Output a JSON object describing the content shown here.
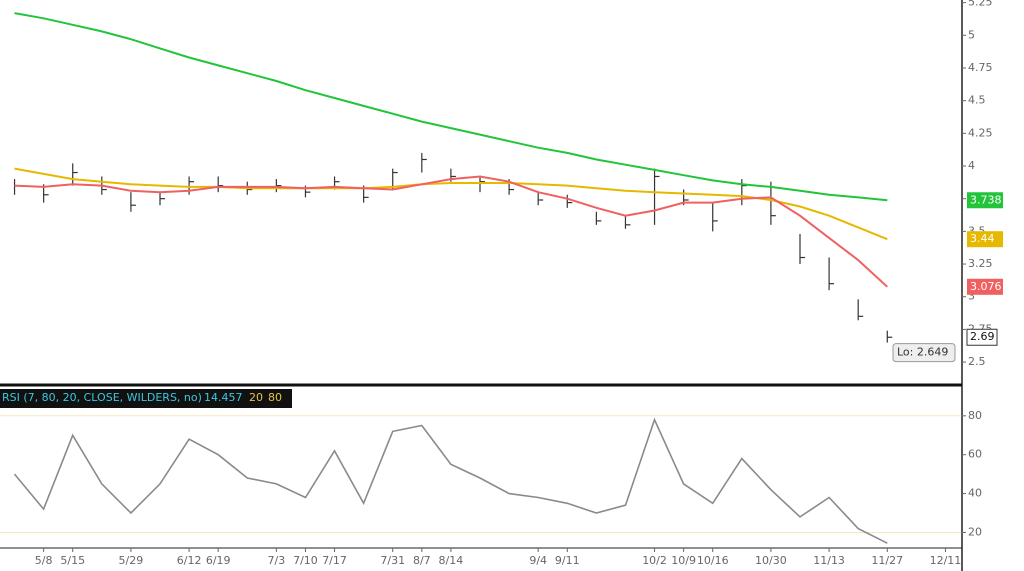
{
  "chart_data": [
    {
      "type": "ohlc",
      "categories": [
        null,
        "5/8",
        "5/15",
        null,
        "5/29",
        null,
        "6/12",
        "6/19",
        null,
        "7/3",
        "7/10",
        "7/17",
        null,
        "7/31",
        "8/7",
        "8/14",
        null,
        null,
        "9/4",
        "9/11",
        null,
        null,
        "10/2",
        "10/9",
        "10/16",
        null,
        "10/30",
        null,
        "11/13",
        null,
        "11/27",
        null,
        "12/11"
      ],
      "high": [
        3.9,
        3.86,
        4.02,
        3.92,
        3.8,
        3.8,
        3.92,
        3.92,
        3.88,
        3.9,
        3.85,
        3.92,
        3.85,
        3.98,
        4.1,
        3.98,
        3.92,
        3.9,
        3.8,
        3.78,
        3.65,
        3.62,
        3.98,
        3.82,
        3.72,
        3.9,
        3.88,
        3.48,
        3.3,
        2.98,
        2.74,
        null,
        null
      ],
      "low": [
        3.78,
        3.72,
        3.85,
        3.78,
        3.65,
        3.7,
        3.78,
        3.8,
        3.78,
        3.8,
        3.76,
        3.82,
        3.72,
        3.82,
        3.95,
        3.88,
        3.8,
        3.78,
        3.7,
        3.68,
        3.55,
        3.52,
        3.55,
        3.7,
        3.5,
        3.7,
        3.55,
        3.25,
        3.05,
        2.82,
        2.649,
        null,
        null
      ],
      "close": [
        3.85,
        3.78,
        3.95,
        3.82,
        3.7,
        3.75,
        3.88,
        3.85,
        3.82,
        3.85,
        3.8,
        3.88,
        3.76,
        3.95,
        4.05,
        3.92,
        3.88,
        3.82,
        3.74,
        3.72,
        3.58,
        3.55,
        3.92,
        3.74,
        3.58,
        3.85,
        3.62,
        3.3,
        3.1,
        2.85,
        2.69,
        null,
        null
      ],
      "price_color": "#333333",
      "series": [
        {
          "color": "#22c43a",
          "values": [
            5.17,
            5.13,
            5.08,
            5.03,
            4.97,
            4.9,
            4.83,
            4.77,
            4.71,
            4.65,
            4.58,
            4.52,
            4.46,
            4.4,
            4.34,
            4.29,
            4.24,
            4.19,
            4.14,
            4.1,
            4.05,
            4.01,
            3.97,
            3.93,
            3.89,
            3.86,
            3.84,
            3.81,
            3.78,
            3.76,
            3.738,
            null,
            null
          ]
        },
        {
          "color": "#e6b800",
          "values": [
            3.98,
            3.94,
            3.9,
            3.88,
            3.86,
            3.85,
            3.84,
            3.84,
            3.83,
            3.83,
            3.83,
            3.83,
            3.83,
            3.84,
            3.86,
            3.87,
            3.87,
            3.87,
            3.86,
            3.85,
            3.83,
            3.81,
            3.8,
            3.79,
            3.78,
            3.77,
            3.74,
            3.69,
            3.62,
            3.53,
            3.44,
            null,
            null
          ]
        },
        {
          "color": "#f06060",
          "values": [
            3.85,
            3.84,
            3.86,
            3.85,
            3.81,
            3.8,
            3.81,
            3.84,
            3.84,
            3.84,
            3.83,
            3.84,
            3.83,
            3.82,
            3.86,
            3.9,
            3.92,
            3.88,
            3.8,
            3.75,
            3.68,
            3.62,
            3.66,
            3.72,
            3.72,
            3.75,
            3.76,
            3.62,
            3.45,
            3.28,
            3.076,
            null,
            null
          ]
        }
      ],
      "annotation": "Lo: 2.649",
      "ylim": [
        2.34,
        5.27
      ],
      "yticks": [
        2.5,
        2.75,
        3,
        3.25,
        3.5,
        3.75,
        4,
        4.25,
        4.5,
        4.75,
        5,
        5.25
      ]
    },
    {
      "type": "line",
      "title": "RSI (7, 80, 20, CLOSE, WILDERS, no)",
      "series": [
        {
          "color": "#8a8a8a",
          "values": [
            50,
            32,
            70,
            45,
            30,
            45,
            68,
            60,
            48,
            45,
            38,
            62,
            35,
            72,
            75,
            55,
            48,
            40,
            38,
            35,
            30,
            34,
            78,
            45,
            35,
            58,
            42,
            28,
            38,
            22,
            14.457,
            null,
            null
          ]
        }
      ],
      "levels": [
        20,
        80
      ],
      "level_color": "#e6c34a",
      "ylim": [
        12,
        83
      ],
      "yticks": [
        20,
        40,
        60,
        80
      ]
    }
  ]
}
